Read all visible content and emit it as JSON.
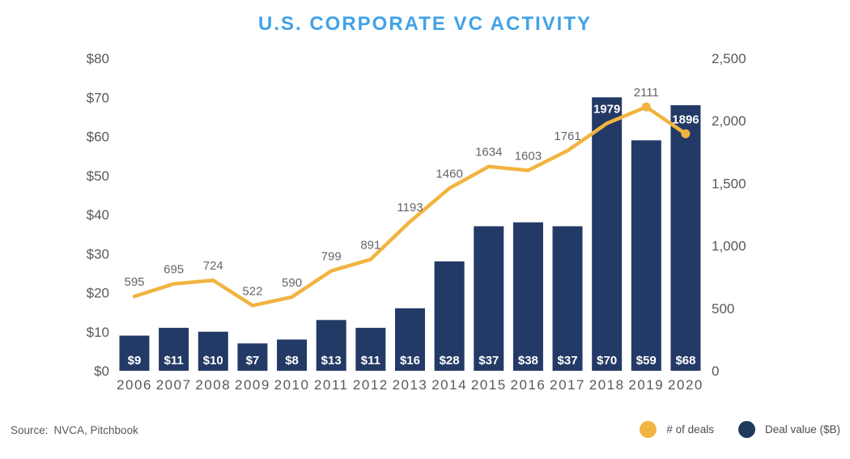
{
  "title": "U.S. CORPORATE VC ACTIVITY",
  "footer": {
    "source_label": "Source:",
    "source_value": "NVCA, Pitchbook"
  },
  "legend": [
    {
      "label": "# of deals",
      "color": "#F2B440"
    },
    {
      "label": "Deal value ($B)",
      "color": "#1F3A5C"
    }
  ],
  "colors": {
    "title": "#41A2E8",
    "bar": "#243A66",
    "line": "#F2B440",
    "marker": "#F2B440",
    "axis_text": "#58595B",
    "year_text": "#58595B",
    "data_label": "#63666A",
    "bar_label": "#FFFFFF"
  },
  "chart_data": {
    "type": "bar",
    "subtype": "bar+line combo, dual axis",
    "title": "U.S. CORPORATE VC ACTIVITY",
    "grid": false,
    "legend_position": "bottom-right",
    "categories": [
      "2006",
      "2007",
      "2008",
      "2009",
      "2010",
      "2011",
      "2012",
      "2013",
      "2014",
      "2015",
      "2016",
      "2017",
      "2018",
      "2019",
      "2020"
    ],
    "series": [
      {
        "name": "Deal value ($B)",
        "type": "bar",
        "axis": "left",
        "values": [
          9,
          11,
          10,
          7,
          8,
          13,
          11,
          16,
          28,
          37,
          38,
          37,
          70,
          59,
          68
        ],
        "value_labels": [
          "$9",
          "$11",
          "$10",
          "$7",
          "$8",
          "$13",
          "$11",
          "$16",
          "$28",
          "$37",
          "$38",
          "$37",
          "$70",
          "$59",
          "$68"
        ]
      },
      {
        "name": "# of deals",
        "type": "line",
        "axis": "right",
        "values": [
          595,
          695,
          724,
          522,
          590,
          799,
          891,
          1193,
          1460,
          1634,
          1603,
          1761,
          1979,
          2111,
          1896
        ],
        "value_labels": [
          "595",
          "695",
          "724",
          "522",
          "590",
          "799",
          "891",
          "1193",
          "1460",
          "1634",
          "1603",
          "1761",
          "1979",
          "2111",
          "1896"
        ],
        "marker_indices": [
          13,
          14
        ],
        "white_label_indices": [
          12,
          14
        ]
      }
    ],
    "left_axis": {
      "min": 0,
      "max": 80,
      "tick_values": [
        0,
        10,
        20,
        30,
        40,
        50,
        60,
        70,
        80
      ],
      "tick_labels": [
        "$0",
        "$10",
        "$20",
        "$30",
        "$40",
        "$50",
        "$60",
        "$70",
        "$80"
      ]
    },
    "right_axis": {
      "min": 0,
      "max": 2500,
      "tick_values": [
        0,
        500,
        1000,
        1500,
        2000,
        2500
      ],
      "tick_labels": [
        "0",
        "500",
        "1,000",
        "1,500",
        "2,000",
        "2,500"
      ]
    }
  }
}
